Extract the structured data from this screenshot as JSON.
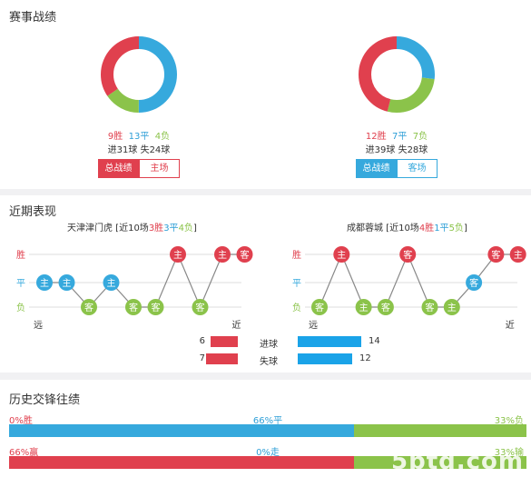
{
  "season": {
    "title": "赛事战绩",
    "home": {
      "results": {
        "win": 9,
        "draw": 13,
        "loss": 4
      },
      "win_label": "9胜",
      "draw_label": "13平",
      "loss_label": "4负",
      "goals_label": "进31球  失24球",
      "btn_total": "总战绩",
      "btn_venue": "主场"
    },
    "away": {
      "results": {
        "win": 12,
        "draw": 7,
        "loss": 7
      },
      "win_label": "12胜",
      "draw_label": "7平",
      "loss_label": "7负",
      "goals_label": "进39球  失28球",
      "btn_total": "总战绩",
      "btn_venue": "客场"
    }
  },
  "recent": {
    "title": "近期表现",
    "home": {
      "name": "天津津门虎",
      "summary_prefix": " [近10场",
      "win_label": "3胜",
      "draw_label": "3平",
      "loss_label": "4负",
      "summary_suffix": "]",
      "results": [
        "平",
        "平",
        "负",
        "平",
        "负",
        "负",
        "胜",
        "负",
        "胜",
        "胜"
      ],
      "venues": [
        "主",
        "主",
        "客",
        "主",
        "客",
        "客",
        "主",
        "客",
        "主",
        "客"
      ]
    },
    "away": {
      "name": "成都蓉城",
      "summary_prefix": " [近10场",
      "win_label": "4胜",
      "draw_label": "1平",
      "loss_label": "5负",
      "summary_suffix": "]",
      "results": [
        "负",
        "胜",
        "负",
        "负",
        "胜",
        "负",
        "负",
        "平",
        "胜",
        "胜"
      ],
      "venues": [
        "客",
        "主",
        "主",
        "客",
        "客",
        "客",
        "主",
        "客",
        "客",
        "主"
      ]
    },
    "axis": {
      "win": "胜",
      "draw": "平",
      "loss": "负",
      "far": "远",
      "near": "近"
    },
    "stats": [
      {
        "label": "进球",
        "home": 6,
        "away": 14
      },
      {
        "label": "失球",
        "home": 7,
        "away": 12
      }
    ]
  },
  "history": {
    "title": "历史交锋往绩",
    "row1": {
      "left": "0%胜",
      "mid": "66%平",
      "right": "33%负",
      "left_pct": 0,
      "mid_pct": 66,
      "right_pct": 33
    },
    "row2": {
      "left": "66%赢",
      "mid": "0%走",
      "right": "33%输",
      "left_pct": 66,
      "mid_pct": 0,
      "right_pct": 33
    }
  },
  "watermark": "5btq.com",
  "colors": {
    "win": "#e0404e",
    "draw": "#36a9dd",
    "loss": "#8bc34a",
    "home_bar": "#e0404e",
    "away_bar": "#1aa3e8"
  }
}
